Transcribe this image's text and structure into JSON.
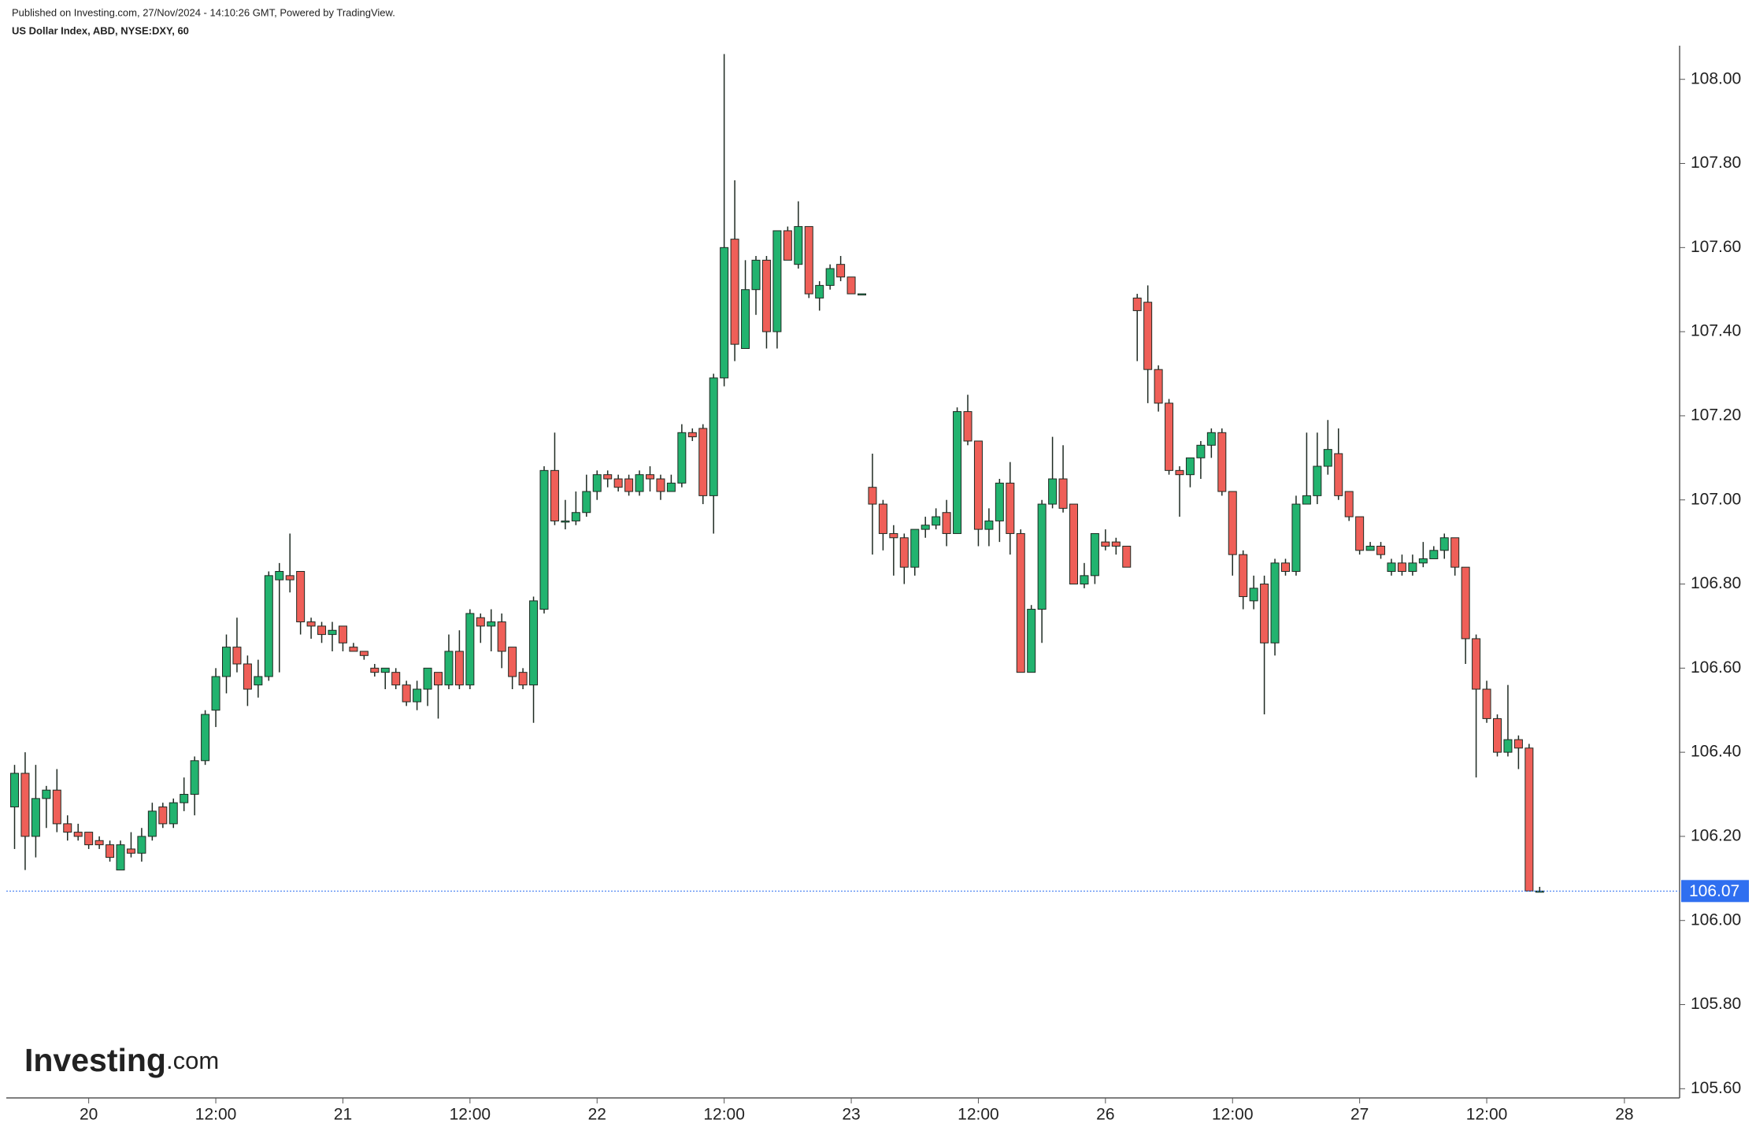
{
  "header": {
    "published": "Published on Investing.com, 27/Nov/2024 - 14:10:26 GMT, Powered by TradingView.",
    "logo_main": "Investing",
    "logo_suffix": ".com"
  },
  "chart_data": {
    "type": "candlestick",
    "title": "US Dollar Index, ABD, NYSE:DXY, 60",
    "categories": [
      null,
      null,
      null,
      null,
      null,
      null,
      null,
      "20",
      null,
      null,
      null,
      null,
      null,
      null,
      null,
      null,
      null,
      null,
      null,
      "12:00",
      null,
      null,
      null,
      null,
      null,
      null,
      null,
      null,
      null,
      null,
      null,
      "21",
      null,
      null,
      null,
      null,
      null,
      null,
      null,
      null,
      null,
      null,
      null,
      "12:00",
      null,
      null,
      null,
      null,
      null,
      null,
      null,
      null,
      null,
      null,
      null,
      "22",
      null,
      null,
      null,
      null,
      null,
      null,
      null,
      null,
      null,
      null,
      null,
      "12:00",
      null,
      null,
      null,
      null,
      null,
      null,
      null,
      null,
      null,
      null,
      null,
      "23",
      null,
      null,
      null,
      null,
      null,
      null,
      null,
      null,
      null,
      null,
      null,
      "12:00",
      null,
      null,
      null,
      null,
      null,
      null,
      null,
      null,
      null,
      null,
      null,
      "26",
      null,
      null,
      null,
      null,
      null,
      null,
      null,
      null,
      null,
      null,
      null,
      "12:00",
      null,
      null,
      null,
      null,
      null,
      null,
      null,
      null,
      null,
      null,
      null,
      "27",
      null,
      null,
      null,
      null,
      null,
      null,
      null,
      null,
      null,
      null,
      null,
      "12:00",
      null,
      null,
      null,
      null,
      null,
      null,
      null,
      null,
      null,
      null,
      null,
      null,
      "28"
    ],
    "open": [
      106.27,
      106.35,
      106.2,
      106.29,
      106.31,
      106.23,
      106.21,
      106.21,
      106.19,
      106.18,
      106.12,
      106.17,
      106.16,
      106.2,
      106.27,
      106.23,
      106.28,
      106.3,
      106.38,
      106.5,
      106.58,
      106.65,
      106.61,
      106.56,
      106.58,
      106.81,
      106.82,
      106.83,
      106.71,
      106.7,
      106.68,
      106.7,
      106.65,
      106.64,
      106.6,
      106.59,
      106.59,
      106.56,
      106.52,
      106.55,
      106.59,
      106.56,
      106.64,
      106.56,
      106.72,
      106.7,
      106.71,
      106.65,
      106.59,
      106.56,
      106.74,
      107.07,
      106.95,
      106.95,
      106.97,
      107.02,
      107.06,
      107.05,
      107.05,
      107.02,
      107.06,
      107.05,
      107.02,
      107.04,
      107.16,
      107.17,
      107.01,
      107.29,
      107.62,
      107.36,
      107.5,
      107.57,
      107.4,
      107.64,
      107.56,
      107.65,
      107.48,
      107.51,
      107.56,
      107.53,
      107.49,
      107.03,
      106.99,
      106.92,
      106.91,
      106.84,
      106.93,
      106.94,
      106.97,
      106.92,
      107.21,
      107.14,
      106.93,
      106.95,
      107.04,
      106.92,
      106.59,
      106.74,
      106.99,
      107.05,
      106.99,
      106.8,
      106.82,
      106.9,
      106.9,
      106.89,
      107.48,
      107.47,
      107.31,
      107.23,
      107.07,
      107.06,
      107.1,
      107.13,
      107.16,
      107.02,
      106.87,
      106.76,
      106.8,
      106.66,
      106.85,
      106.83,
      106.99,
      107.01,
      107.08,
      107.11,
      107.02,
      106.96,
      106.88,
      106.89,
      106.83,
      106.85,
      106.83,
      106.85,
      106.86,
      106.88,
      106.91,
      106.84,
      106.67,
      106.55,
      106.48,
      106.4,
      106.43,
      106.41,
      106.07,
      null,
      null,
      null,
      null,
      null,
      null,
      null,
      null
    ],
    "high": [
      106.37,
      106.4,
      106.37,
      106.32,
      106.36,
      106.25,
      106.23,
      106.21,
      106.2,
      106.19,
      106.19,
      106.21,
      106.22,
      106.28,
      106.28,
      106.29,
      106.34,
      106.39,
      106.5,
      106.6,
      106.68,
      106.72,
      106.63,
      106.62,
      106.83,
      106.85,
      106.92,
      106.83,
      106.72,
      106.71,
      106.71,
      106.7,
      106.66,
      106.64,
      106.61,
      106.6,
      106.6,
      106.57,
      106.57,
      106.6,
      106.59,
      106.68,
      106.69,
      106.74,
      106.73,
      106.74,
      106.73,
      106.65,
      106.6,
      106.77,
      107.08,
      107.16,
      107.0,
      107.02,
      107.06,
      107.07,
      107.07,
      107.06,
      107.06,
      107.07,
      107.08,
      107.06,
      107.06,
      107.18,
      107.17,
      107.18,
      107.3,
      108.06,
      107.76,
      107.57,
      107.58,
      107.58,
      107.64,
      107.65,
      107.71,
      107.65,
      107.52,
      107.56,
      107.58,
      107.53,
      107.49,
      107.11,
      107.0,
      106.94,
      106.92,
      106.93,
      106.96,
      106.98,
      107.0,
      107.22,
      107.25,
      107.14,
      106.98,
      107.05,
      107.09,
      106.93,
      106.75,
      107.0,
      107.15,
      107.13,
      106.99,
      106.85,
      106.92,
      106.93,
      106.91,
      106.89,
      107.49,
      107.51,
      107.32,
      107.24,
      107.08,
      107.1,
      107.14,
      107.17,
      107.17,
      107.02,
      106.88,
      106.82,
      106.82,
      106.86,
      106.86,
      107.01,
      107.16,
      107.16,
      107.19,
      107.17,
      107.02,
      106.96,
      106.9,
      106.9,
      106.86,
      106.87,
      106.87,
      106.9,
      106.89,
      106.92,
      106.91,
      106.84,
      106.68,
      106.57,
      106.49,
      106.56,
      106.44,
      106.42,
      106.08,
      null,
      null,
      null,
      null,
      null,
      null,
      null,
      null
    ],
    "low": [
      106.17,
      106.12,
      106.15,
      106.22,
      106.21,
      106.19,
      106.19,
      106.17,
      106.17,
      106.14,
      106.12,
      106.15,
      106.14,
      106.19,
      106.22,
      106.22,
      106.26,
      106.25,
      106.37,
      106.46,
      106.54,
      106.59,
      106.51,
      106.53,
      106.57,
      106.59,
      106.78,
      106.68,
      106.67,
      106.66,
      106.64,
      106.64,
      106.64,
      106.62,
      106.58,
      106.55,
      106.55,
      106.51,
      106.5,
      106.51,
      106.48,
      106.55,
      106.55,
      106.55,
      106.66,
      106.64,
      106.6,
      106.55,
      106.55,
      106.47,
      106.73,
      106.94,
      106.93,
      106.94,
      106.96,
      107.0,
      107.03,
      107.02,
      107.01,
      107.01,
      107.02,
      107.0,
      107.02,
      107.03,
      107.14,
      106.99,
      106.92,
      107.27,
      107.33,
      107.36,
      107.44,
      107.36,
      107.36,
      107.57,
      107.55,
      107.48,
      107.45,
      107.5,
      107.52,
      107.49,
      107.49,
      106.87,
      106.88,
      106.82,
      106.8,
      106.82,
      106.91,
      106.93,
      106.89,
      106.92,
      107.13,
      106.89,
      106.89,
      106.9,
      106.87,
      106.59,
      106.59,
      106.66,
      106.98,
      106.97,
      106.8,
      106.79,
      106.8,
      106.88,
      106.87,
      106.84,
      107.33,
      107.23,
      107.21,
      107.06,
      106.96,
      107.03,
      107.05,
      107.1,
      107.01,
      106.82,
      106.74,
      106.74,
      106.49,
      106.63,
      106.82,
      106.82,
      106.99,
      106.99,
      107.06,
      107.0,
      106.95,
      106.87,
      106.88,
      106.86,
      106.82,
      106.82,
      106.82,
      106.84,
      106.86,
      106.86,
      106.82,
      106.61,
      106.34,
      106.47,
      106.39,
      106.39,
      106.36,
      106.07,
      106.07,
      null,
      null,
      null,
      null,
      null,
      null,
      null,
      null
    ],
    "close": [
      106.35,
      106.2,
      106.29,
      106.31,
      106.23,
      106.21,
      106.2,
      106.18,
      106.18,
      106.15,
      106.18,
      106.16,
      106.2,
      106.26,
      106.23,
      106.28,
      106.3,
      106.38,
      106.49,
      106.58,
      106.65,
      106.61,
      106.55,
      106.58,
      106.82,
      106.83,
      106.81,
      106.71,
      106.7,
      106.68,
      106.69,
      106.66,
      106.64,
      106.63,
      106.59,
      106.6,
      106.56,
      106.52,
      106.55,
      106.6,
      106.56,
      106.64,
      106.56,
      106.73,
      106.7,
      106.71,
      106.64,
      106.58,
      106.56,
      106.76,
      107.07,
      106.95,
      106.95,
      106.97,
      107.02,
      107.06,
      107.05,
      107.03,
      107.02,
      107.06,
      107.05,
      107.02,
      107.04,
      107.16,
      107.15,
      107.01,
      107.29,
      107.6,
      107.37,
      107.5,
      107.57,
      107.4,
      107.64,
      107.57,
      107.65,
      107.49,
      107.51,
      107.55,
      107.53,
      107.49,
      107.49,
      106.99,
      106.92,
      106.91,
      106.84,
      106.93,
      106.94,
      106.96,
      106.92,
      107.21,
      107.14,
      106.93,
      106.95,
      107.04,
      106.92,
      106.59,
      106.74,
      106.99,
      107.05,
      106.98,
      106.8,
      106.82,
      106.92,
      106.89,
      106.89,
      106.84,
      107.45,
      107.31,
      107.23,
      107.07,
      107.06,
      107.1,
      107.13,
      107.16,
      107.02,
      106.87,
      106.77,
      106.79,
      106.66,
      106.85,
      106.83,
      106.99,
      107.01,
      107.08,
      107.12,
      107.01,
      106.96,
      106.88,
      106.89,
      106.87,
      106.85,
      106.83,
      106.85,
      106.86,
      106.88,
      106.91,
      106.84,
      106.67,
      106.55,
      106.48,
      106.4,
      106.43,
      106.41,
      106.07,
      106.07,
      null,
      null,
      null,
      null,
      null,
      null,
      null,
      null
    ],
    "up_color": "#22b36f",
    "down_color": "#ef5f58",
    "wick_color": "#1e2a22",
    "last_price": 106.07,
    "last_price_color": "#2f6ff0",
    "ylim": [
      105.58,
      108.08
    ],
    "yticks": [
      {
        "value": 105.6,
        "label": "105.60"
      },
      {
        "value": 105.8,
        "label": "105.80"
      },
      {
        "value": 106.0,
        "label": "106.00"
      },
      {
        "value": 106.2,
        "label": "106.20"
      },
      {
        "value": 106.4,
        "label": "106.40"
      },
      {
        "value": 106.6,
        "label": "106.60"
      },
      {
        "value": 106.8,
        "label": "106.80"
      },
      {
        "value": 107.0,
        "label": "107.00"
      },
      {
        "value": 107.2,
        "label": "107.20"
      },
      {
        "value": 107.4,
        "label": "107.40"
      },
      {
        "value": 107.6,
        "label": "107.60"
      },
      {
        "value": 107.8,
        "label": "107.80"
      },
      {
        "value": 108.0,
        "label": "108.00"
      }
    ]
  }
}
